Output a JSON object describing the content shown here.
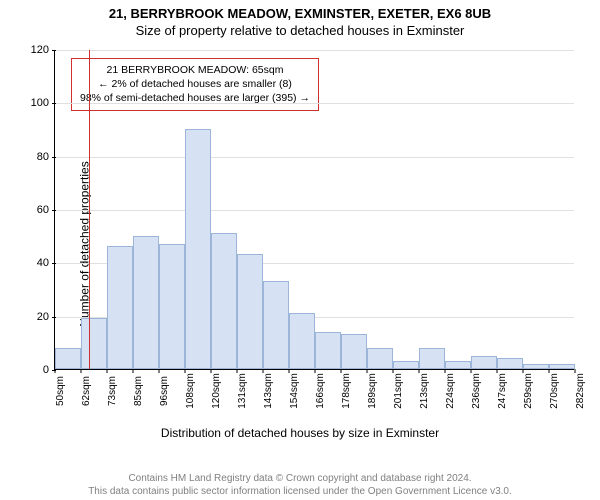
{
  "title_main": "21, BERRYBROOK MEADOW, EXMINSTER, EXETER, EX6 8UB",
  "title_sub": "Size of property relative to detached houses in Exminster",
  "chart": {
    "type": "histogram",
    "ylabel": "Number of detached properties",
    "xlabel": "Distribution of detached houses by size in Exminster",
    "ylim": [
      0,
      120
    ],
    "ytick_step": 20,
    "yticks": [
      0,
      20,
      40,
      60,
      80,
      100,
      120
    ],
    "x_start": 50,
    "x_bin_width": 11.6,
    "x_tick_labels": [
      "50sqm",
      "62sqm",
      "73sqm",
      "85sqm",
      "96sqm",
      "108sqm",
      "120sqm",
      "131sqm",
      "143sqm",
      "154sqm",
      "166sqm",
      "178sqm",
      "189sqm",
      "201sqm",
      "213sqm",
      "224sqm",
      "236sqm",
      "247sqm",
      "259sqm",
      "270sqm",
      "282sqm"
    ],
    "bar_values": [
      8,
      19,
      46,
      50,
      47,
      90,
      51,
      43,
      33,
      21,
      14,
      13,
      8,
      3,
      8,
      3,
      5,
      4,
      2,
      2
    ],
    "bar_fill": "#d6e2f3",
    "bar_stroke": "#9db5d8",
    "grid_color": "#e0e0e0",
    "axis_color": "#000000",
    "reference_value": 65,
    "reference_color": "#d03030",
    "callout": {
      "lines": [
        "21 BERRYBROOK MEADOW: 65sqm",
        "← 2% of detached houses are smaller (8)",
        "98% of semi-detached houses are larger (395) →"
      ],
      "border_color": "#d03030",
      "bg_color": "#ffffff",
      "fontsize": 10.5
    },
    "label_fontsize": 12,
    "tick_fontsize": 11
  },
  "footer_line1": "Contains HM Land Registry data © Crown copyright and database right 2024.",
  "footer_line2": "This data contains public sector information licensed under the Open Government Licence v3.0."
}
